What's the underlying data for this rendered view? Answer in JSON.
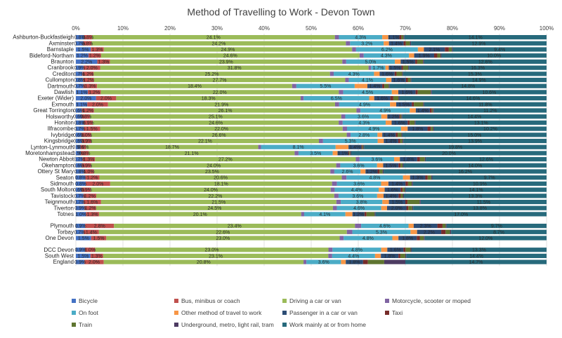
{
  "chart_data": {
    "type": "bar",
    "orientation": "horizontal",
    "stacked": "percent",
    "title": "Method of Travelling to Work - Devon Town",
    "x_ticks": [
      "0%",
      "10%",
      "20%",
      "30%",
      "40%",
      "50%",
      "60%",
      "70%",
      "80%",
      "90%",
      "100%"
    ],
    "xlim": [
      0,
      100
    ],
    "grid": true,
    "legend_position": "bottom",
    "groups": [
      [
        "Ashburton-Buckfastleigh",
        "Axminster",
        "Barnstaple",
        "Bideford-Northam",
        "Braunton",
        "Cranbrook",
        "Crediton",
        "Cullompton",
        "Dartmouth",
        "Dawlish",
        "Exeter (Wider)",
        "Exmouth",
        "Great Torrington",
        "Holsworthy",
        "Honiton",
        "Ilfracombe",
        "Ivybridge",
        "Kingsbridge",
        "Lynton-Lynmouth",
        "Moretonhampstead",
        "Newton Abbot",
        "Okehampton",
        "Ottery St Mary",
        "Seaton",
        "Sidmouth",
        "South Molton",
        "Tavistock",
        "Teignmouth",
        "Tiverton",
        "Totnes"
      ],
      [
        "Plymouth",
        "Torbay",
        "One Devon"
      ],
      [
        "DCC Devon",
        "South West",
        "England"
      ]
    ],
    "categories": [
      "Ashburton-Buckfastleigh",
      "Axminster",
      "Barnstaple",
      "Bideford-Northam",
      "Braunton",
      "Cranbrook",
      "Crediton",
      "Cullompton",
      "Dartmouth",
      "Dawlish",
      "Exeter (Wider)",
      "Exmouth",
      "Great Torrington",
      "Holsworthy",
      "Honiton",
      "Ilfracombe",
      "Ivybridge",
      "Kingsbridge",
      "Lynton-Lynmouth",
      "Moretonhampstead",
      "Newton Abbot",
      "Okehampton",
      "Ottery St Mary",
      "Seaton",
      "Sidmouth",
      "South Molton",
      "Tavistock",
      "Teignmouth",
      "Tiverton",
      "Totnes",
      "Plymouth",
      "Torbay",
      "One Devon",
      "DCC Devon",
      "South West",
      "England"
    ],
    "series": [
      {
        "name": "Bicycle",
        "color": "#4472c4",
        "values": [
          0.8,
          0.7,
          1.5,
          1.2,
          2.2,
          0.9,
          0.7,
          0.8,
          0.7,
          1.1,
          2.0,
          1.1,
          0.6,
          0.6,
          0.8,
          0.7,
          0.6,
          0.6,
          0.5,
          0.5,
          0.7,
          0.6,
          0.8,
          0.8,
          0.8,
          0.6,
          0.7,
          0.7,
          0.9,
          1.0,
          0.9,
          0.7,
          1.5,
          0.9,
          1.5,
          0.9
        ]
      },
      {
        "name": "Bus, minibus or coach",
        "color": "#c0504d",
        "values": [
          0.8,
          0.8,
          1.3,
          1.2,
          1.3,
          2.0,
          1.2,
          1.2,
          1.3,
          1.2,
          2.0,
          2.0,
          1.2,
          0.8,
          0.9,
          1.5,
          1.0,
          0.9,
          0.6,
          0.8,
          1.3,
          0.9,
          1.0,
          1.2,
          2.0,
          0.9,
          1.2,
          1.6,
          1.2,
          1.3,
          2.8,
          1.4,
          1.5,
          1.0,
          1.3,
          2.0
        ]
      },
      {
        "name": "Driving a car or van",
        "color": "#9bbb59",
        "values": [
          24.1,
          24.2,
          24.9,
          24.6,
          23.9,
          31.8,
          25.2,
          27.7,
          18.4,
          22.0,
          18.3,
          21.9,
          26.1,
          25.1,
          24.6,
          22.0,
          26.6,
          22.1,
          18.7,
          21.1,
          27.2,
          24.0,
          23.5,
          20.6,
          18.1,
          24.0,
          22.2,
          21.5,
          24.5,
          20.1,
          23.4,
          22.6,
          23.0,
          23.0,
          23.1,
          20.8
        ]
      },
      {
        "name": "Motorcycle, scooter or moped",
        "color": "#8064a2",
        "values": [
          0.4,
          0.4,
          0.4,
          0.4,
          0.4,
          0.3,
          0.4,
          0.4,
          0.4,
          0.4,
          0.3,
          0.4,
          0.4,
          0.4,
          0.4,
          0.4,
          0.4,
          0.4,
          0.3,
          0.4,
          0.4,
          0.4,
          0.4,
          0.4,
          0.4,
          0.4,
          0.4,
          0.4,
          0.4,
          0.3,
          0.6,
          0.5,
          0.4,
          0.4,
          0.4,
          0.3
        ]
      },
      {
        "name": "On foot",
        "color": "#4bacc6",
        "values": [
          4.3,
          3.2,
          6.2,
          4.3,
          5.0,
          1.7,
          4.3,
          4.1,
          5.5,
          4.5,
          6.5,
          4.9,
          4.9,
          3.6,
          4.3,
          4.9,
          2.8,
          5.3,
          8.1,
          3.5,
          3.6,
          3.6,
          2.6,
          4.8,
          3.6,
          4.4,
          3.6,
          3.8,
          4.6,
          4.1,
          4.6,
          5.3,
          4.8,
          4.8,
          4.4,
          3.6
        ]
      },
      {
        "name": "Other method of travel to work",
        "color": "#f79646",
        "values": [
          0.6,
          0.5,
          0.6,
          0.5,
          0.6,
          0.4,
          0.6,
          0.6,
          1.2,
          0.6,
          0.5,
          0.6,
          0.6,
          0.6,
          0.6,
          0.6,
          0.5,
          0.6,
          1.4,
          0.5,
          0.6,
          0.6,
          0.5,
          0.6,
          0.6,
          0.6,
          0.6,
          0.6,
          0.6,
          0.7,
          0.5,
          0.6,
          0.6,
          0.6,
          0.6,
          0.5
        ]
      },
      {
        "name": "Passenger in a car or van",
        "color": "#2c4d75",
        "values": [
          1.1,
          1.4,
          2.1,
          1.9,
          1.5,
          1.5,
          1.6,
          1.6,
          1.4,
          1.6,
          1.6,
          1.5,
          1.4,
          1.2,
          1.6,
          1.8,
          1.4,
          1.4,
          1.4,
          1.1,
          1.8,
          1.5,
          1.2,
          1.3,
          1.4,
          1.6,
          1.4,
          1.5,
          2.0,
          1.2,
          2.3,
          2.2,
          1.8,
          1.6,
          1.8,
          1.8
        ]
      },
      {
        "name": "Taxi",
        "color": "#772c2a",
        "values": [
          0.2,
          0.2,
          0.4,
          0.3,
          0.2,
          0.2,
          0.2,
          0.2,
          0.2,
          0.2,
          0.3,
          0.2,
          0.2,
          0.1,
          0.2,
          0.3,
          0.2,
          0.2,
          0.1,
          0.1,
          0.3,
          0.2,
          0.2,
          0.2,
          0.2,
          0.2,
          0.2,
          0.2,
          0.2,
          0.2,
          0.5,
          0.4,
          0.3,
          0.2,
          0.2,
          0.5
        ]
      },
      {
        "name": "Train",
        "color": "#5f7530",
        "values": [
          0.2,
          0.4,
          0.3,
          0.3,
          0.6,
          0.6,
          0.6,
          0.3,
          0.4,
          1.2,
          0.5,
          0.9,
          0.1,
          0.1,
          0.5,
          0.2,
          0.4,
          0.2,
          0.1,
          0.1,
          0.5,
          0.2,
          0.3,
          0.3,
          0.3,
          0.2,
          0.2,
          1.1,
          0.4,
          0.8,
          0.3,
          0.4,
          0.4,
          0.5,
          0.5,
          1.7
        ]
      },
      {
        "name": "Underground, metro, light rail, tram",
        "color": "#4d3b62",
        "values": [
          0.1,
          0.1,
          0.1,
          0.1,
          0.1,
          0.1,
          0.1,
          0.1,
          0.1,
          0.1,
          0.1,
          0.1,
          0.1,
          0.1,
          0.1,
          0.1,
          0.1,
          0.1,
          0.1,
          0.1,
          0.1,
          0.1,
          0.1,
          0.1,
          0.1,
          0.1,
          0.1,
          0.1,
          0.1,
          0.1,
          0.1,
          0.1,
          0.1,
          0.1,
          0.1,
          2.2
        ]
      },
      {
        "name": "Work mainly at or from home",
        "color": "#276a7c",
        "values": [
          14.1,
          12.9,
          9.4,
          10.0,
          12.6,
          16.3,
          15.3,
          14.9,
          14.8,
          10.6,
          14.6,
          11.8,
          11.2,
          14.4,
          13.1,
          10.2,
          15.0,
          13.9,
          19.8,
          20.0,
          12.6,
          14.0,
          16.2,
          9.7,
          10.9,
          14.1,
          13.3,
          11.5,
          13.8,
          17.0,
          9.7,
          8.7,
          12.0,
          13.3,
          14.4,
          14.7
        ]
      }
    ],
    "labeled_series": [
      "Bicycle",
      "Bus, minibus or coach",
      "Driving a car or van",
      "On foot",
      "Passenger in a car or van",
      "Work mainly at or from home"
    ]
  }
}
